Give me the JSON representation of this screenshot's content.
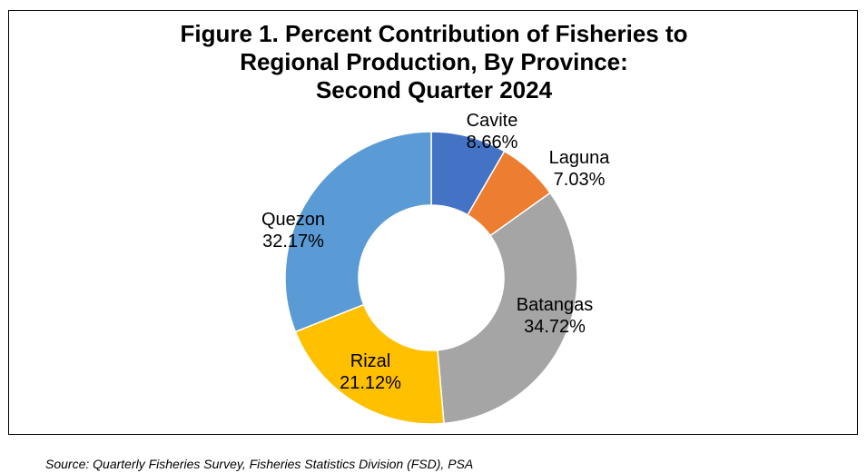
{
  "chart_data": {
    "type": "pie",
    "style": "donut",
    "title_lines": [
      "Figure 1. Percent Contribution of Fisheries to",
      "Regional Production, By Province:",
      "Second Quarter 2024"
    ],
    "slices": [
      {
        "label": "Cavite",
        "value": 8.66,
        "value_text": "8.66%",
        "color": "#4472C4"
      },
      {
        "label": "Laguna",
        "value": 7.03,
        "value_text": "7.03%",
        "color": "#ED7D31"
      },
      {
        "label": "Batangas",
        "value": 34.72,
        "value_text": "34.72%",
        "color": "#A5A5A5"
      },
      {
        "label": "Rizal",
        "value": 21.12,
        "value_text": "21.12%",
        "color": "#FFC000"
      },
      {
        "label": "Quezon",
        "value": 32.17,
        "value_text": "32.17%",
        "color": "#5B9BD5"
      }
    ],
    "legend": "none"
  },
  "footer": {
    "source": "Source: Quarterly Fisheries Survey, Fisheries Statistics Division (FSD), PSA"
  }
}
